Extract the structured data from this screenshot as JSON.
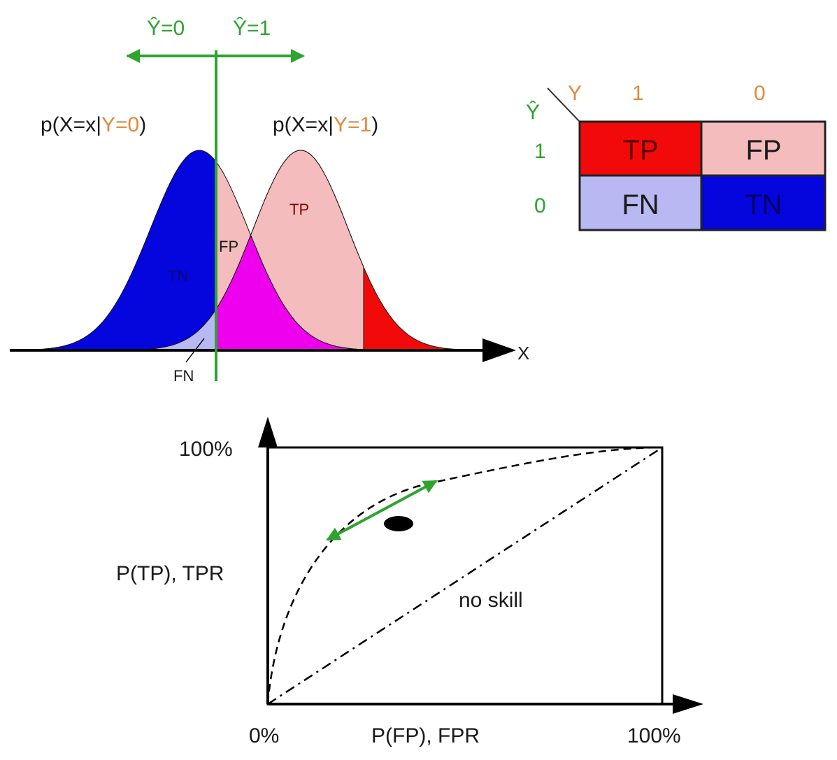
{
  "colors": {
    "tn": "#0505dd",
    "fn": "#b8b8f2",
    "tp": "#f20a0a",
    "fp": "#f4bcbc",
    "overlap": "#ee00ee",
    "threshold": "#2ea32e",
    "label_accent": "#e08a3a",
    "axis": "#000000"
  },
  "top": {
    "threshold_left_label": "Ŷ=0",
    "threshold_right_label": "Ŷ=1",
    "dist0_prefix": "p(X=x|",
    "dist0_cond": "Y=0",
    "dist0_suffix": ")",
    "dist1_prefix": "p(X=x|",
    "dist1_cond": "Y=1",
    "dist1_suffix": ")",
    "region_tn": "TN",
    "region_fp": "FP",
    "region_tp": "TP",
    "region_fn": "FN",
    "x_axis_label": "X"
  },
  "matrix": {
    "y_header": "Y",
    "yhat_header": "Ŷ",
    "col_1": "1",
    "col_0": "0",
    "row_1": "1",
    "row_0": "0",
    "cell_tp": "TP",
    "cell_fp": "FP",
    "cell_fn": "FN",
    "cell_tn": "TN"
  },
  "roc": {
    "y_max_label": "100%",
    "y_axis_label": "P(TP), TPR",
    "x_min_label": "0%",
    "x_axis_label": "P(FP), FPR",
    "x_max_label": "100%",
    "no_skill_label": "no skill"
  }
}
